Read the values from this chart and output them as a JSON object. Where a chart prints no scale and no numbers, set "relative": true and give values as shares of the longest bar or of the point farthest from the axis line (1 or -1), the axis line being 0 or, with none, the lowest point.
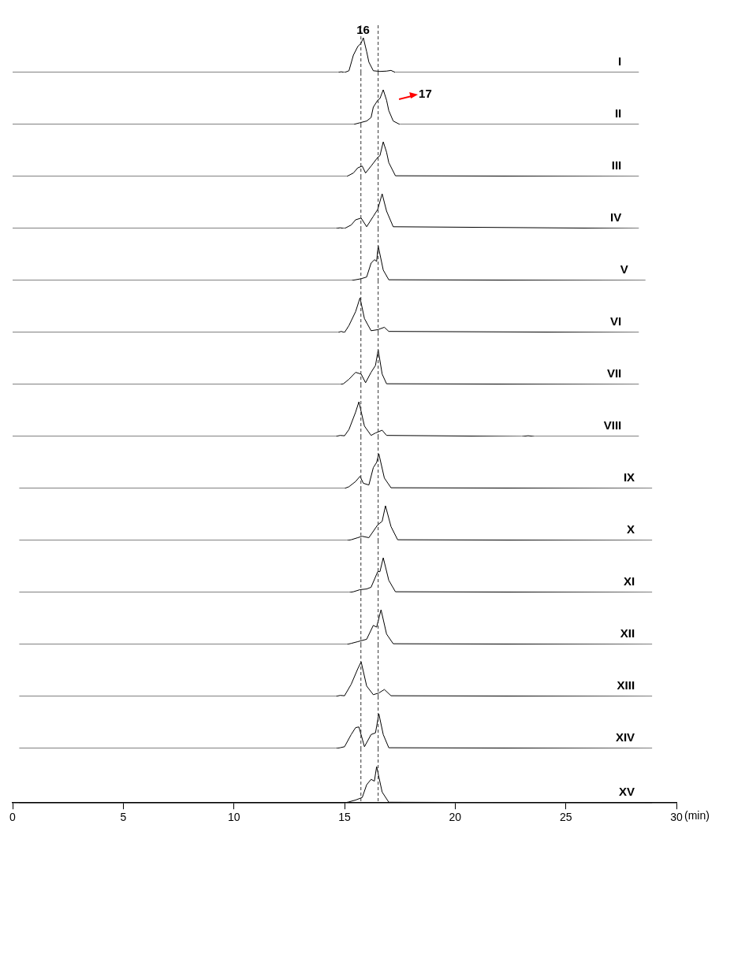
{
  "chart_data": [
    {
      "type": "line",
      "relative": true,
      "xlim": [
        0,
        30
      ],
      "tick_labels": false,
      "annotations": [
        {
          "text": "16",
          "x": 15.84,
          "y": 1
        }
      ],
      "ref_lines": [
        {
          "axis": "x",
          "value": 15.74,
          "line_style": "dashed"
        },
        {
          "axis": "x",
          "value": 16.52,
          "line_style": "dashed"
        }
      ],
      "series": [
        {
          "name": "I",
          "color": "#000000",
          "x": [
            0,
            14.7,
            14.85,
            15.0,
            15.2,
            15.4,
            15.6,
            15.75,
            15.85,
            16.0,
            16.1,
            16.3,
            16.6,
            16.9,
            17.1,
            17.3,
            28.3
          ],
          "values": [
            0,
            0,
            0.02,
            0,
            0.05,
            0.5,
            0.75,
            0.85,
            1,
            0.6,
            0.3,
            0.05,
            0.03,
            0.04,
            0.06,
            0,
            0
          ]
        }
      ]
    },
    {
      "type": "line",
      "relative": true,
      "xlim": [
        0,
        30
      ],
      "tick_labels": false,
      "annotations": [
        {
          "text": "17",
          "x": 16.75,
          "y": 1
        }
      ],
      "ref_lines": [
        {
          "axis": "x",
          "value": 15.74,
          "line_style": "dashed"
        },
        {
          "axis": "x",
          "value": 16.52,
          "line_style": "dashed"
        }
      ],
      "series": [
        {
          "name": "II",
          "color": "#000000",
          "x": [
            0,
            15.4,
            15.7,
            16.0,
            16.2,
            16.3,
            16.5,
            16.6,
            16.75,
            16.9,
            17.0,
            17.2,
            17.5,
            28.3
          ],
          "values": [
            0,
            0,
            0.05,
            0.1,
            0.2,
            0.5,
            0.7,
            0.75,
            1,
            0.7,
            0.4,
            0.1,
            0,
            0
          ]
        }
      ]
    },
    {
      "type": "line",
      "relative": true,
      "xlim": [
        0,
        30
      ],
      "tick_labels": false,
      "ref_lines": [
        {
          "axis": "x",
          "value": 15.74,
          "line_style": "dashed"
        },
        {
          "axis": "x",
          "value": 16.52,
          "line_style": "dashed"
        }
      ],
      "series": [
        {
          "name": "III",
          "color": "#000000",
          "x": [
            0,
            15.1,
            15.4,
            15.6,
            15.8,
            15.95,
            16.2,
            16.5,
            16.6,
            16.75,
            16.9,
            17.0,
            17.3,
            28.3
          ],
          "values": [
            0,
            0,
            0.1,
            0.25,
            0.3,
            0.1,
            0.3,
            0.55,
            0.6,
            1,
            0.7,
            0.4,
            0.02,
            0
          ]
        }
      ]
    },
    {
      "type": "line",
      "relative": true,
      "xlim": [
        0,
        30
      ],
      "tick_labels": false,
      "ref_lines": [
        {
          "axis": "x",
          "value": 15.74,
          "line_style": "dashed"
        },
        {
          "axis": "x",
          "value": 16.52,
          "line_style": "dashed"
        }
      ],
      "series": [
        {
          "name": "IV",
          "color": "#000000",
          "x": [
            0,
            14.6,
            14.8,
            15.0,
            15.3,
            15.5,
            15.75,
            16.0,
            16.3,
            16.5,
            16.7,
            16.9,
            17.2,
            28.3
          ],
          "values": [
            0,
            0,
            0.02,
            0,
            0.1,
            0.25,
            0.3,
            0.05,
            0.35,
            0.55,
            1,
            0.5,
            0.05,
            0
          ]
        }
      ]
    },
    {
      "type": "line",
      "relative": true,
      "xlim": [
        0,
        30
      ],
      "tick_labels": false,
      "ref_lines": [
        {
          "axis": "x",
          "value": 15.74,
          "line_style": "dashed"
        },
        {
          "axis": "x",
          "value": 16.52,
          "line_style": "dashed"
        }
      ],
      "series": [
        {
          "name": "V",
          "color": "#000000",
          "x": [
            0,
            15.3,
            15.5,
            15.75,
            16.0,
            16.2,
            16.35,
            16.45,
            16.52,
            16.75,
            17.0,
            28.6
          ],
          "values": [
            0,
            0,
            0.02,
            0.05,
            0.1,
            0.5,
            0.6,
            0.55,
            1,
            0.3,
            0.02,
            0
          ]
        }
      ]
    },
    {
      "type": "line",
      "relative": true,
      "xlim": [
        0,
        30
      ],
      "tick_labels": false,
      "ref_lines": [
        {
          "axis": "x",
          "value": 15.74,
          "line_style": "dashed"
        },
        {
          "axis": "x",
          "value": 16.52,
          "line_style": "dashed"
        }
      ],
      "series": [
        {
          "name": "VI",
          "color": "#000000",
          "x": [
            0,
            14.7,
            14.85,
            15.0,
            15.2,
            15.5,
            15.7,
            15.9,
            16.2,
            16.5,
            16.8,
            17.0,
            28.3
          ],
          "values": [
            0,
            0,
            0.03,
            0,
            0.2,
            0.6,
            1,
            0.4,
            0.05,
            0.08,
            0.15,
            0.03,
            0
          ]
        }
      ]
    },
    {
      "type": "line",
      "relative": true,
      "xlim": [
        0,
        30
      ],
      "tick_labels": false,
      "ref_lines": [
        {
          "axis": "x",
          "value": 15.74,
          "line_style": "dashed"
        },
        {
          "axis": "x",
          "value": 16.52,
          "line_style": "dashed"
        }
      ],
      "series": [
        {
          "name": "VII",
          "color": "#000000",
          "x": [
            0,
            14.8,
            14.95,
            15.2,
            15.5,
            15.75,
            15.95,
            16.2,
            16.4,
            16.52,
            16.7,
            16.9,
            28.3
          ],
          "values": [
            0,
            0,
            0.02,
            0.15,
            0.35,
            0.3,
            0.05,
            0.35,
            0.55,
            1,
            0.3,
            0.02,
            0
          ]
        }
      ]
    },
    {
      "type": "line",
      "relative": true,
      "xlim": [
        0,
        30
      ],
      "tick_labels": false,
      "ref_lines": [
        {
          "axis": "x",
          "value": 15.74,
          "line_style": "dashed"
        },
        {
          "axis": "x",
          "value": 16.52,
          "line_style": "dashed"
        }
      ],
      "series": [
        {
          "name": "VIII",
          "color": "#000000",
          "x": [
            0,
            14.6,
            14.8,
            15.0,
            15.2,
            15.5,
            15.65,
            15.9,
            16.2,
            16.4,
            16.7,
            16.9,
            23.0,
            23.3,
            23.6,
            28.3
          ],
          "values": [
            0,
            0,
            0.03,
            0.02,
            0.2,
            0.7,
            1,
            0.3,
            0.03,
            0.1,
            0.18,
            0.03,
            0,
            0.02,
            0,
            0
          ]
        }
      ]
    },
    {
      "type": "line",
      "relative": true,
      "xlim": [
        0,
        30
      ],
      "tick_labels": false,
      "ref_lines": [
        {
          "axis": "x",
          "value": 15.74,
          "line_style": "dashed"
        },
        {
          "axis": "x",
          "value": 16.52,
          "line_style": "dashed"
        }
      ],
      "series": [
        {
          "name": "IX",
          "color": "#000000",
          "x": [
            0.3,
            15.0,
            15.2,
            15.5,
            15.7,
            15.85,
            16.1,
            16.3,
            16.45,
            16.55,
            16.8,
            17.1,
            28.9
          ],
          "values": [
            0,
            0,
            0.05,
            0.2,
            0.35,
            0.15,
            0.1,
            0.6,
            0.75,
            1,
            0.3,
            0.02,
            0
          ]
        }
      ]
    },
    {
      "type": "line",
      "relative": true,
      "xlim": [
        0,
        30
      ],
      "tick_labels": false,
      "ref_lines": [
        {
          "axis": "x",
          "value": 15.74,
          "line_style": "dashed"
        },
        {
          "axis": "x",
          "value": 16.52,
          "line_style": "dashed"
        }
      ],
      "series": [
        {
          "name": "X",
          "color": "#000000",
          "x": [
            0.3,
            15.1,
            15.3,
            15.6,
            15.8,
            16.1,
            16.5,
            16.7,
            16.85,
            17.1,
            17.4,
            28.9
          ],
          "values": [
            0,
            0,
            0.02,
            0.08,
            0.12,
            0.08,
            0.45,
            0.55,
            1,
            0.4,
            0.02,
            0
          ]
        }
      ]
    },
    {
      "type": "line",
      "relative": true,
      "xlim": [
        0,
        30
      ],
      "tick_labels": false,
      "ref_lines": [
        {
          "axis": "x",
          "value": 15.74,
          "line_style": "dashed"
        },
        {
          "axis": "x",
          "value": 16.52,
          "line_style": "dashed"
        }
      ],
      "series": [
        {
          "name": "XI",
          "color": "#000000",
          "x": [
            0.3,
            15.2,
            15.4,
            15.7,
            16.0,
            16.2,
            16.5,
            16.6,
            16.75,
            17.0,
            17.3,
            28.9
          ],
          "values": [
            0,
            0,
            0.02,
            0.08,
            0.1,
            0.15,
            0.6,
            0.6,
            1,
            0.35,
            0.02,
            0
          ]
        }
      ]
    },
    {
      "type": "line",
      "relative": true,
      "xlim": [
        0,
        30
      ],
      "tick_labels": false,
      "ref_lines": [
        {
          "axis": "x",
          "value": 15.74,
          "line_style": "dashed"
        },
        {
          "axis": "x",
          "value": 16.52,
          "line_style": "dashed"
        }
      ],
      "series": [
        {
          "name": "XII",
          "color": "#000000",
          "x": [
            0.3,
            15.1,
            15.3,
            15.6,
            16.0,
            16.3,
            16.45,
            16.65,
            16.9,
            17.2,
            28.9
          ],
          "values": [
            0,
            0,
            0.03,
            0.08,
            0.15,
            0.55,
            0.5,
            1,
            0.3,
            0.02,
            0
          ]
        }
      ]
    },
    {
      "type": "line",
      "relative": true,
      "xlim": [
        0,
        30
      ],
      "tick_labels": false,
      "ref_lines": [
        {
          "axis": "x",
          "value": 15.74,
          "line_style": "dashed"
        },
        {
          "axis": "x",
          "value": 16.52,
          "line_style": "dashed"
        }
      ],
      "series": [
        {
          "name": "XIII",
          "color": "#000000",
          "x": [
            0.3,
            14.6,
            14.8,
            15.0,
            15.3,
            15.6,
            15.75,
            16.0,
            16.3,
            16.55,
            16.8,
            17.1,
            28.9
          ],
          "values": [
            0,
            0,
            0.03,
            0.02,
            0.35,
            0.8,
            1,
            0.3,
            0.05,
            0.1,
            0.2,
            0.02,
            0
          ]
        }
      ]
    },
    {
      "type": "line",
      "relative": true,
      "xlim": [
        0,
        30
      ],
      "tick_labels": false,
      "ref_lines": [
        {
          "axis": "x",
          "value": 15.74,
          "line_style": "dashed"
        },
        {
          "axis": "x",
          "value": 16.52,
          "line_style": "dashed"
        }
      ],
      "series": [
        {
          "name": "XIV",
          "color": "#000000",
          "x": [
            0.3,
            14.6,
            14.8,
            15.0,
            15.3,
            15.5,
            15.65,
            15.9,
            16.2,
            16.4,
            16.55,
            16.75,
            17.0,
            28.9
          ],
          "values": [
            0,
            0,
            0.02,
            0.05,
            0.4,
            0.6,
            0.62,
            0.05,
            0.4,
            0.45,
            1,
            0.4,
            0.02,
            0
          ]
        }
      ]
    },
    {
      "type": "line",
      "relative": true,
      "xlim": [
        0,
        30
      ],
      "xticks": [
        0,
        5,
        10,
        15,
        20,
        25,
        30
      ],
      "tick_labels": "x",
      "xlabel": "(min)",
      "ref_lines": [
        {
          "axis": "x",
          "value": 15.74,
          "line_style": "dashed"
        },
        {
          "axis": "x",
          "value": 16.52,
          "line_style": "dashed"
        }
      ],
      "series": [
        {
          "name": "XV",
          "color": "#000000",
          "x": [
            0.3,
            15.0,
            15.2,
            15.5,
            15.8,
            16.0,
            16.2,
            16.35,
            16.45,
            16.7,
            17.0,
            28.9
          ],
          "values": [
            0,
            0,
            0.03,
            0.08,
            0.15,
            0.5,
            0.65,
            0.6,
            1,
            0.3,
            0.02,
            0
          ]
        }
      ]
    }
  ]
}
